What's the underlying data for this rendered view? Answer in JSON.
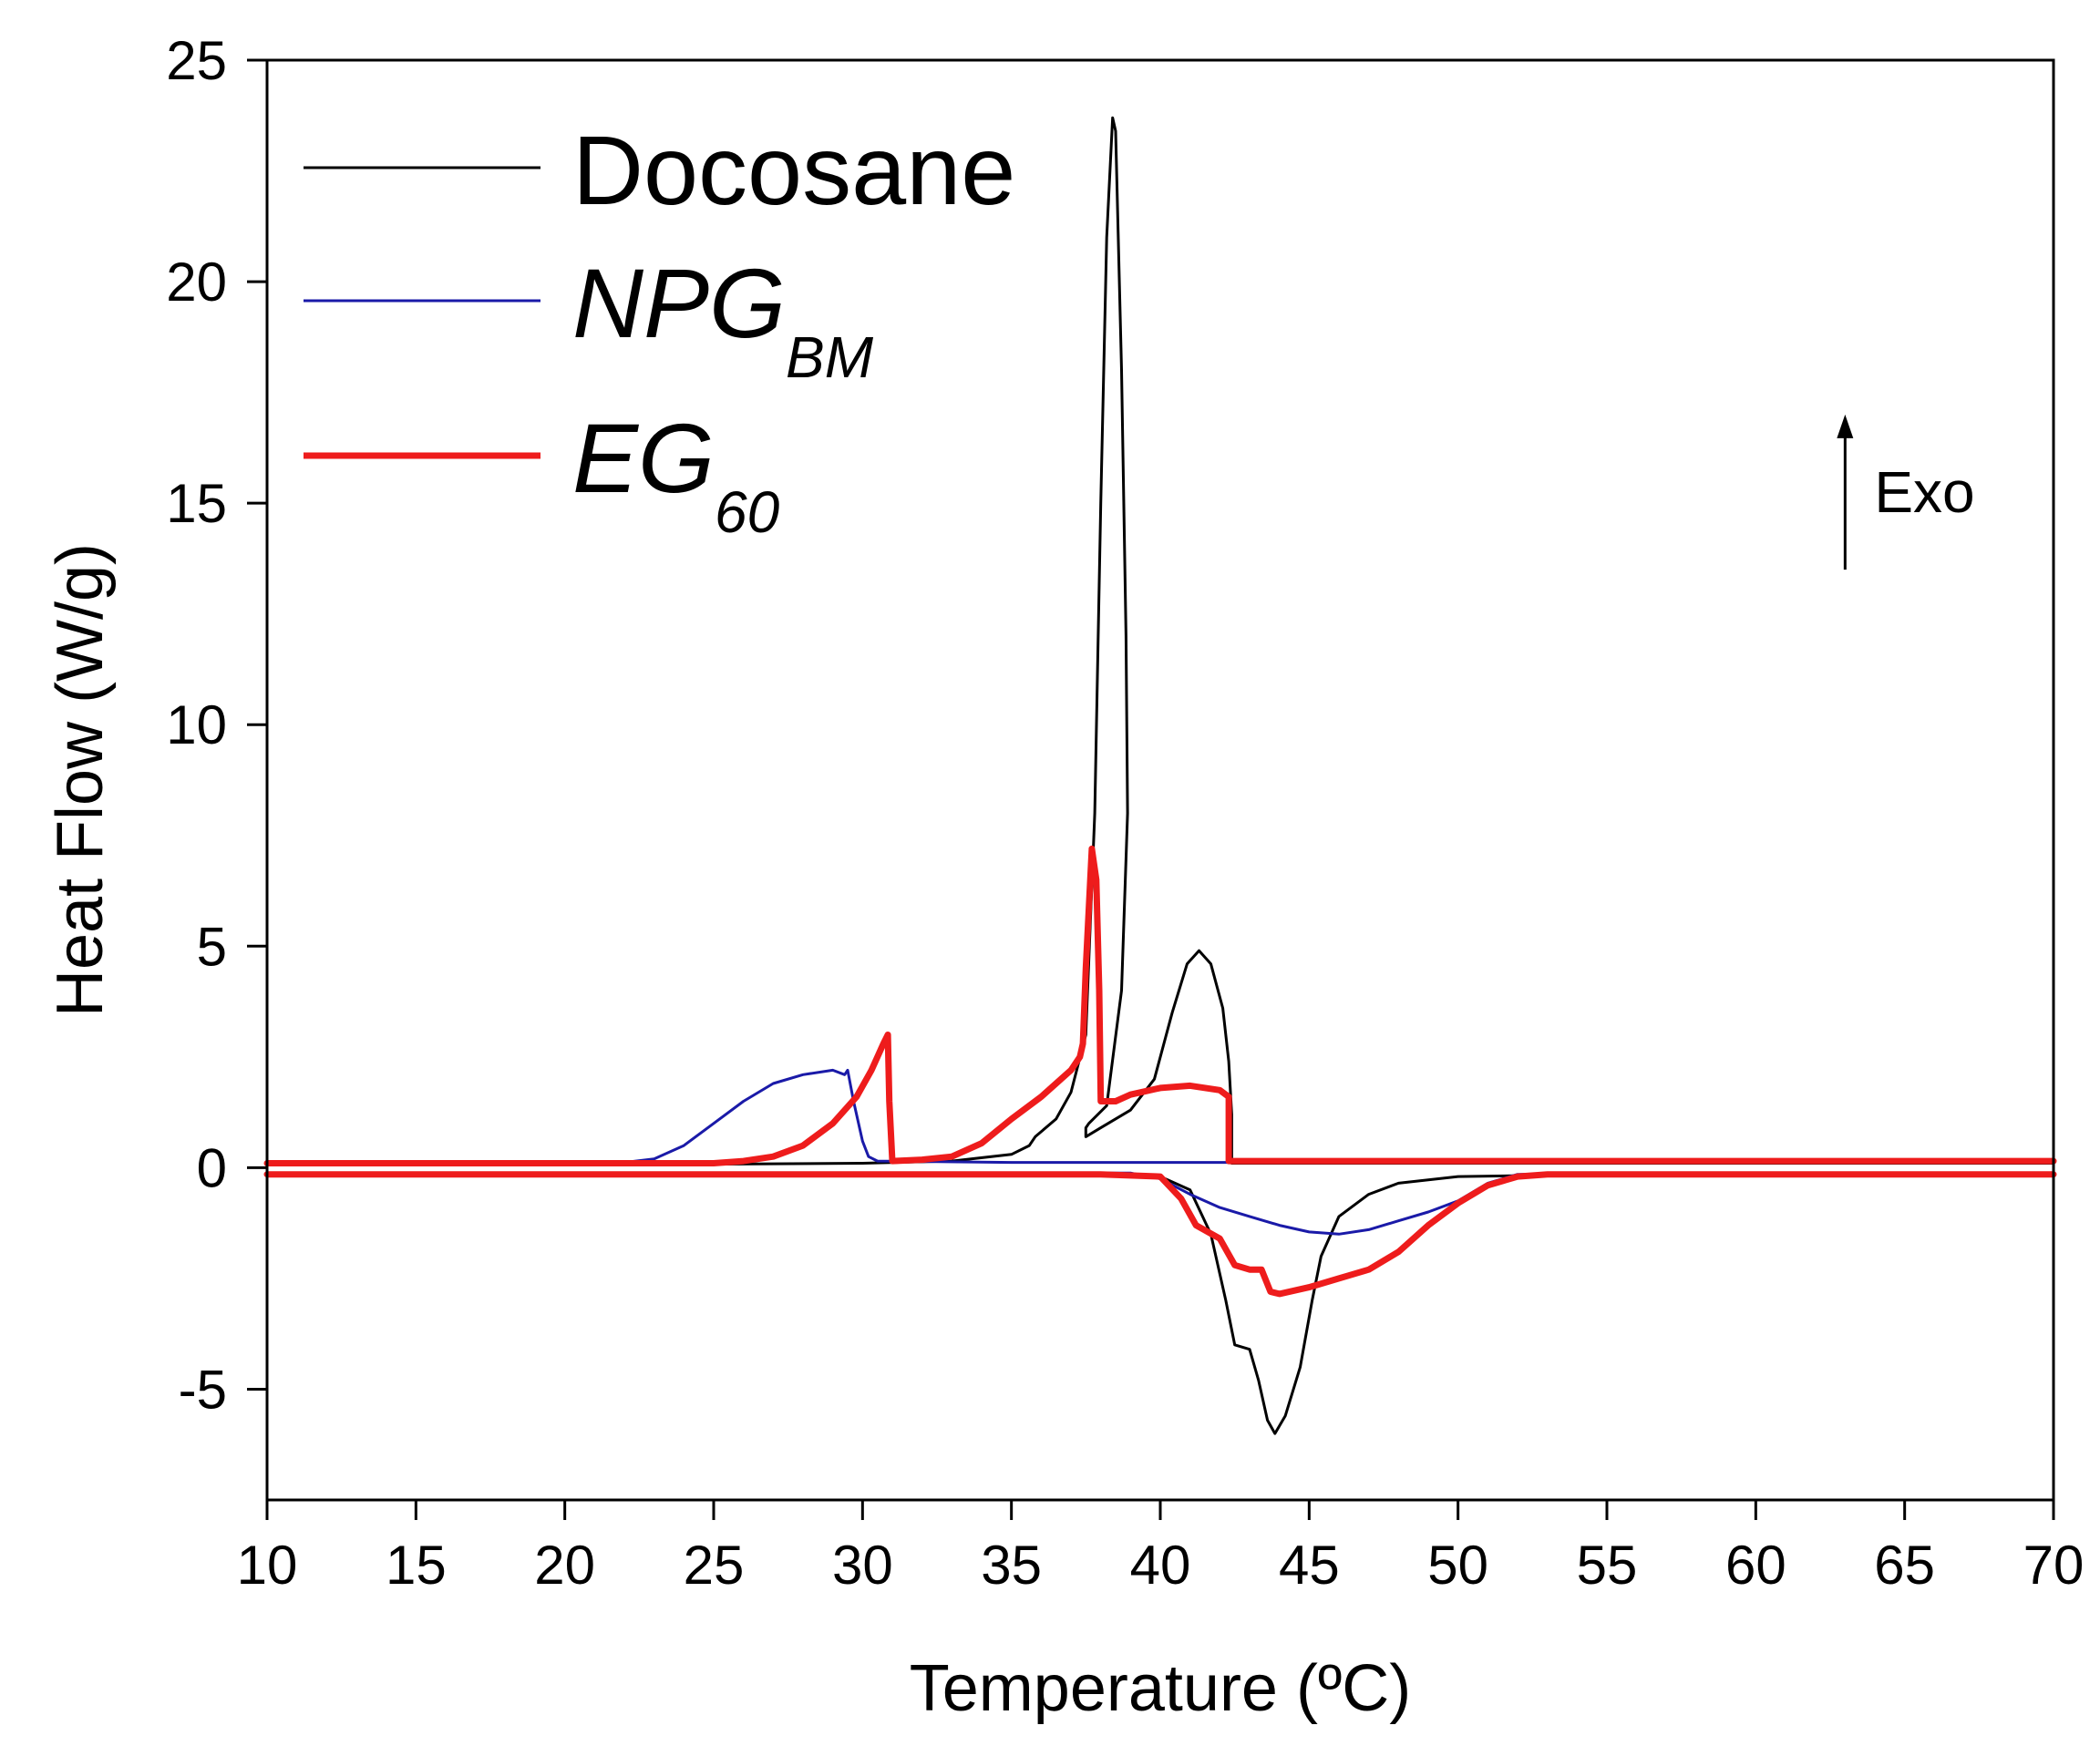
{
  "chart_data": {
    "type": "line",
    "title": "",
    "xlabel": "Temperature (ºC)",
    "ylabel": "Heat Flow (W/g)",
    "xlim": [
      10,
      70
    ],
    "ylim": [
      -7.5,
      25
    ],
    "xticks": [
      10,
      15,
      20,
      25,
      30,
      35,
      40,
      45,
      50,
      55,
      60,
      65,
      70
    ],
    "yticks": [
      -5,
      0,
      5,
      10,
      15,
      20,
      25
    ],
    "xtick_labels": [
      "10",
      "15",
      "20",
      "25",
      "30",
      "35",
      "40",
      "45",
      "50",
      "55",
      "60",
      "65",
      "70"
    ],
    "ytick_labels": [
      "-5",
      "0",
      "5",
      "10",
      "15",
      "20",
      "25"
    ],
    "legend_position": "top-left",
    "annotation": {
      "text": "Exo",
      "arrow_direction": "up",
      "x": 63,
      "y_from": 13.5,
      "y_to": 17
    },
    "series": [
      {
        "name": "Docosane",
        "legend_main": "Docosane",
        "legend_sub": "",
        "italic": false,
        "color": "#000000",
        "width": 3,
        "segments": [
          [
            [
              10,
              0.08
            ],
            [
              20,
              0.08
            ],
            [
              25,
              0.08
            ],
            [
              30,
              0.1
            ],
            [
              33,
              0.15
            ],
            [
              35,
              0.3
            ],
            [
              35.6,
              0.5
            ],
            [
              35.8,
              0.7
            ],
            [
              36.5,
              1.1
            ],
            [
              37,
              1.7
            ],
            [
              37.5,
              3
            ],
            [
              37.8,
              8
            ],
            [
              38.0,
              15
            ],
            [
              38.2,
              21
            ],
            [
              38.4,
              23.7
            ],
            [
              38.5,
              23.4
            ],
            [
              38.7,
              18
            ],
            [
              38.85,
              12
            ],
            [
              38.9,
              8
            ],
            [
              38.7,
              4
            ],
            [
              38.2,
              1.4
            ],
            [
              37.6,
              1.0
            ],
            [
              37.5,
              0.9
            ],
            [
              37.5,
              0.7
            ],
            [
              38,
              0.9
            ],
            [
              39,
              1.3
            ],
            [
              39.8,
              2
            ],
            [
              40.4,
              3.5
            ],
            [
              40.9,
              4.6
            ],
            [
              41.3,
              4.9
            ],
            [
              41.7,
              4.6
            ],
            [
              42.1,
              3.6
            ],
            [
              42.3,
              2.4
            ],
            [
              42.4,
              1.2
            ],
            [
              42.4,
              0.1
            ],
            [
              50,
              0.1
            ],
            [
              70,
              0.1
            ]
          ],
          [
            [
              10,
              -0.15
            ],
            [
              38,
              -0.15
            ],
            [
              40,
              -0.2
            ],
            [
              41,
              -0.5
            ],
            [
              41.7,
              -1.5
            ],
            [
              42.2,
              -3
            ],
            [
              42.5,
              -4
            ],
            [
              43,
              -4.1
            ],
            [
              43.3,
              -4.8
            ],
            [
              43.6,
              -5.7
            ],
            [
              43.85,
              -6.0
            ],
            [
              44.2,
              -5.6
            ],
            [
              44.7,
              -4.5
            ],
            [
              45.1,
              -3
            ],
            [
              45.4,
              -2
            ],
            [
              46,
              -1.1
            ],
            [
              47,
              -0.6
            ],
            [
              48,
              -0.35
            ],
            [
              50,
              -0.2
            ],
            [
              55,
              -0.15
            ],
            [
              70,
              -0.15
            ]
          ]
        ]
      },
      {
        "name": "NPG BM",
        "legend_main": "NPG",
        "legend_sub": "BM",
        "italic": true,
        "color": "#1a1aa8",
        "width": 3,
        "segments": [
          [
            [
              10,
              0.12
            ],
            [
              22,
              0.12
            ],
            [
              23,
              0.2
            ],
            [
              24,
              0.5
            ],
            [
              25,
              1.0
            ],
            [
              26,
              1.5
            ],
            [
              27,
              1.9
            ],
            [
              28,
              2.1
            ],
            [
              29,
              2.2
            ],
            [
              29.4,
              2.1
            ],
            [
              29.5,
              2.2
            ],
            [
              29.7,
              1.5
            ],
            [
              30,
              0.6
            ],
            [
              30.2,
              0.25
            ],
            [
              30.5,
              0.15
            ],
            [
              35,
              0.12
            ],
            [
              42,
              0.12
            ],
            [
              70,
              0.12
            ]
          ],
          [
            [
              10,
              -0.12
            ],
            [
              39,
              -0.12
            ],
            [
              40,
              -0.25
            ],
            [
              41,
              -0.6
            ],
            [
              42,
              -0.9
            ],
            [
              43,
              -1.1
            ],
            [
              44,
              -1.3
            ],
            [
              45,
              -1.45
            ],
            [
              46,
              -1.5
            ],
            [
              47,
              -1.4
            ],
            [
              48,
              -1.2
            ],
            [
              49,
              -1.0
            ],
            [
              50,
              -0.75
            ],
            [
              51,
              -0.35
            ],
            [
              52,
              -0.15
            ],
            [
              55,
              -0.12
            ],
            [
              70,
              -0.12
            ]
          ]
        ]
      },
      {
        "name": "EG 60",
        "legend_main": "EG",
        "legend_sub": "60",
        "italic": true,
        "color": "#ee1c1c",
        "width": 7,
        "segments": [
          [
            [
              10,
              0.1
            ],
            [
              25,
              0.1
            ],
            [
              26,
              0.15
            ],
            [
              27,
              0.25
            ],
            [
              28,
              0.5
            ],
            [
              29,
              1.0
            ],
            [
              29.8,
              1.6
            ],
            [
              30.3,
              2.2
            ],
            [
              30.7,
              2.8
            ],
            [
              30.85,
              3.0
            ],
            [
              30.9,
              1.5
            ],
            [
              31,
              0.15
            ],
            [
              32,
              0.18
            ],
            [
              33,
              0.25
            ],
            [
              34,
              0.55
            ],
            [
              35,
              1.1
            ],
            [
              36,
              1.6
            ],
            [
              37,
              2.2
            ],
            [
              37.3,
              2.5
            ],
            [
              37.4,
              2.8
            ],
            [
              37.5,
              4.5
            ],
            [
              37.7,
              7.2
            ],
            [
              37.85,
              6.5
            ],
            [
              37.95,
              4
            ],
            [
              38.0,
              1.5
            ],
            [
              38.5,
              1.5
            ],
            [
              39,
              1.65
            ],
            [
              40,
              1.8
            ],
            [
              41,
              1.85
            ],
            [
              42,
              1.75
            ],
            [
              42.3,
              1.6
            ],
            [
              42.3,
              0.15
            ],
            [
              50,
              0.15
            ],
            [
              70,
              0.15
            ]
          ],
          [
            [
              10,
              -0.15
            ],
            [
              38,
              -0.15
            ],
            [
              40,
              -0.2
            ],
            [
              40.7,
              -0.7
            ],
            [
              41.2,
              -1.3
            ],
            [
              42,
              -1.6
            ],
            [
              42.5,
              -2.2
            ],
            [
              43,
              -2.3
            ],
            [
              43.4,
              -2.3
            ],
            [
              43.7,
              -2.8
            ],
            [
              44,
              -2.85
            ],
            [
              45,
              -2.7
            ],
            [
              46,
              -2.5
            ],
            [
              47,
              -2.3
            ],
            [
              48,
              -1.9
            ],
            [
              49,
              -1.3
            ],
            [
              50,
              -0.8
            ],
            [
              51,
              -0.4
            ],
            [
              52,
              -0.2
            ],
            [
              53,
              -0.15
            ],
            [
              70,
              -0.15
            ]
          ]
        ]
      }
    ]
  }
}
